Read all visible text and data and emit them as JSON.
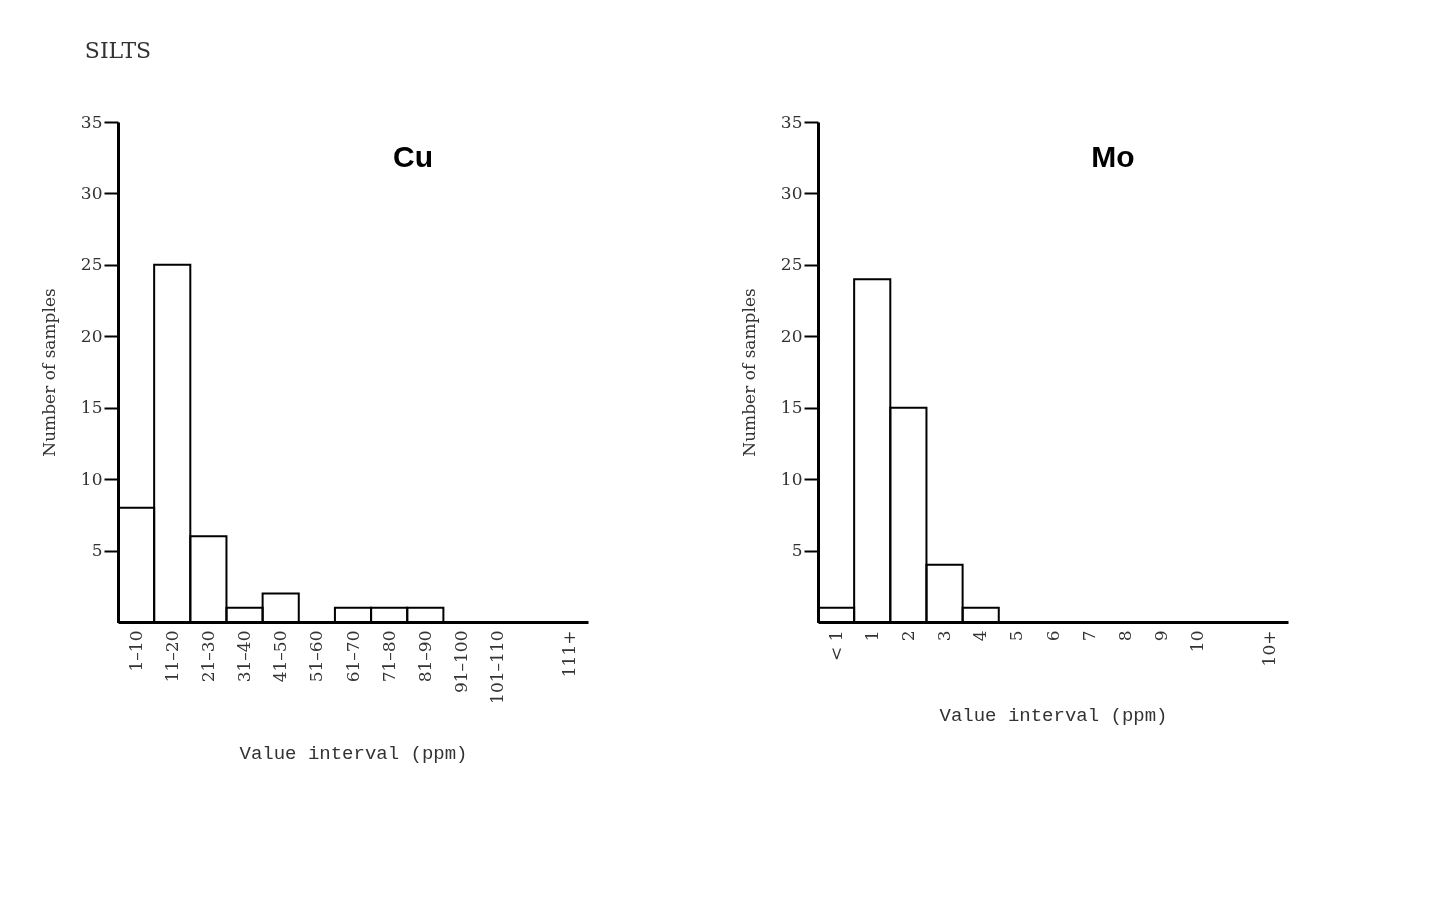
{
  "chart_data": [
    {
      "type": "bar",
      "title": "Cu",
      "annotations": [
        "SILTS"
      ],
      "xlabel": "Value interval (ppm)",
      "ylabel": "Number of samples",
      "categories": [
        "1–10",
        "11–20",
        "21–30",
        "31–40",
        "41–50",
        "51–60",
        "61–70",
        "71–80",
        "81–90",
        "91–100",
        "101–110",
        null,
        "111+"
      ],
      "values": [
        8,
        25,
        6,
        1,
        2,
        0,
        1,
        1,
        1,
        0,
        0,
        null,
        0
      ],
      "color": "#000000",
      "ylim": [
        0,
        35
      ],
      "yticks": [
        5,
        10,
        15,
        20,
        25,
        30,
        35
      ],
      "grid": false
    },
    {
      "type": "bar",
      "title": "Mo",
      "xlabel": "Value interval (ppm)",
      "ylabel": "Number of samples",
      "categories": [
        "< 1",
        "1",
        "2",
        "3",
        "4",
        "5",
        "6",
        "7",
        "8",
        "9",
        "10",
        null,
        "10+"
      ],
      "values": [
        1,
        24,
        15,
        4,
        1,
        0,
        0,
        0,
        0,
        0,
        0,
        null,
        0
      ],
      "color": "#000000",
      "ylim": [
        0,
        35
      ],
      "yticks": [
        5,
        10,
        15,
        20,
        25,
        30,
        35
      ],
      "grid": false
    }
  ]
}
